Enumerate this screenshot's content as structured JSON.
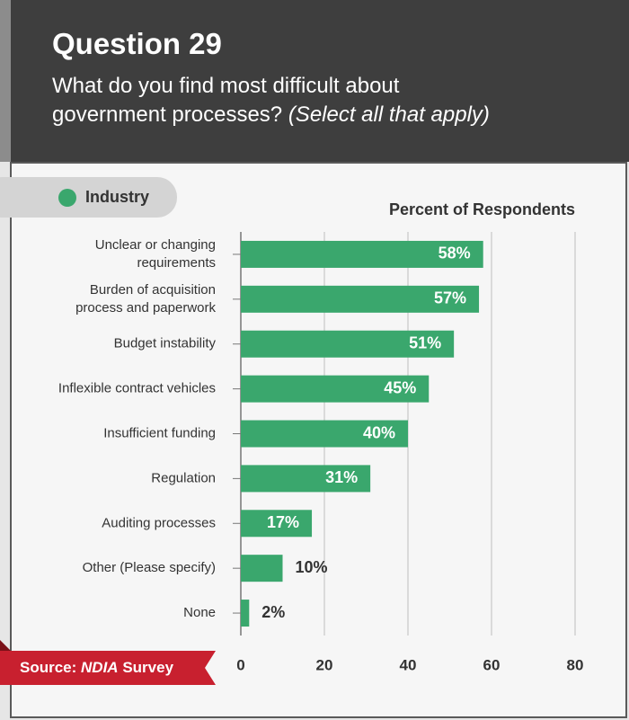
{
  "header": {
    "title": "Question 29",
    "subtitle": "What do you find most difficult about\ngovernment processes?",
    "subtitle_note": "(Select all that apply)"
  },
  "chart_data": {
    "type": "bar",
    "orientation": "horizontal",
    "title": "Percent of Respondents",
    "legend": "Industry",
    "categories": [
      "Unclear or changing\nrequirements",
      "Burden of acquisition\nprocess and paperwork",
      "Budget instability",
      "Inflexible contract vehicles",
      "Insufficient funding",
      "Regulation",
      "Auditing processes",
      "Other (Please specify)",
      "None"
    ],
    "values": [
      58,
      57,
      51,
      45,
      40,
      31,
      17,
      10,
      2
    ],
    "value_labels": [
      "58%",
      "57%",
      "51%",
      "45%",
      "40%",
      "31%",
      "17%",
      "10%",
      "2%"
    ],
    "color": "#3aa76d",
    "xlim": [
      0,
      80
    ],
    "xticks": [
      0,
      20,
      40,
      60,
      80
    ],
    "grid": true
  },
  "source": {
    "label": "Source:",
    "org": "NDIA",
    "suffix": "Survey"
  }
}
